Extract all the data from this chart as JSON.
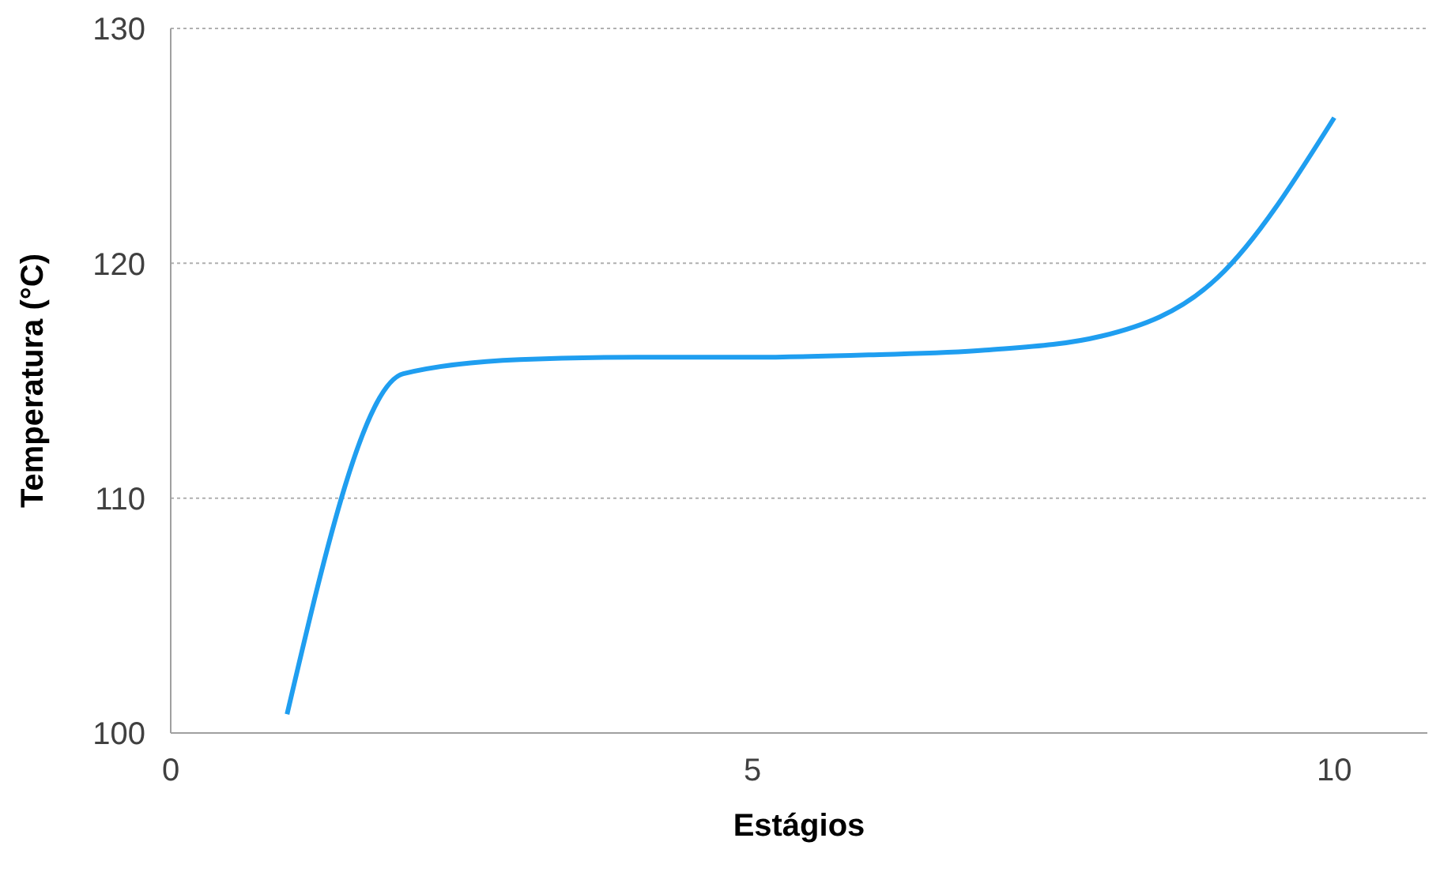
{
  "chart_data": {
    "type": "line",
    "xlabel": "Estágios",
    "ylabel": "Temperatura (°C)",
    "x": [
      1,
      2,
      3,
      4,
      5,
      6,
      7,
      8,
      9,
      10
    ],
    "series": [
      {
        "color": "#1f9ef0",
        "values": [
          100.8,
          115.3,
          115.9,
          116.0,
          116.0,
          116.1,
          116.3,
          116.9,
          119.4,
          126.2
        ]
      }
    ],
    "xlim": [
      0,
      10.8
    ],
    "xticks": [
      0,
      5,
      10
    ],
    "ylim": [
      100,
      130
    ],
    "yticks": [
      100,
      110,
      120,
      130
    ],
    "grid": "y",
    "marker": "none",
    "line_style": "solid",
    "legend": false
  }
}
